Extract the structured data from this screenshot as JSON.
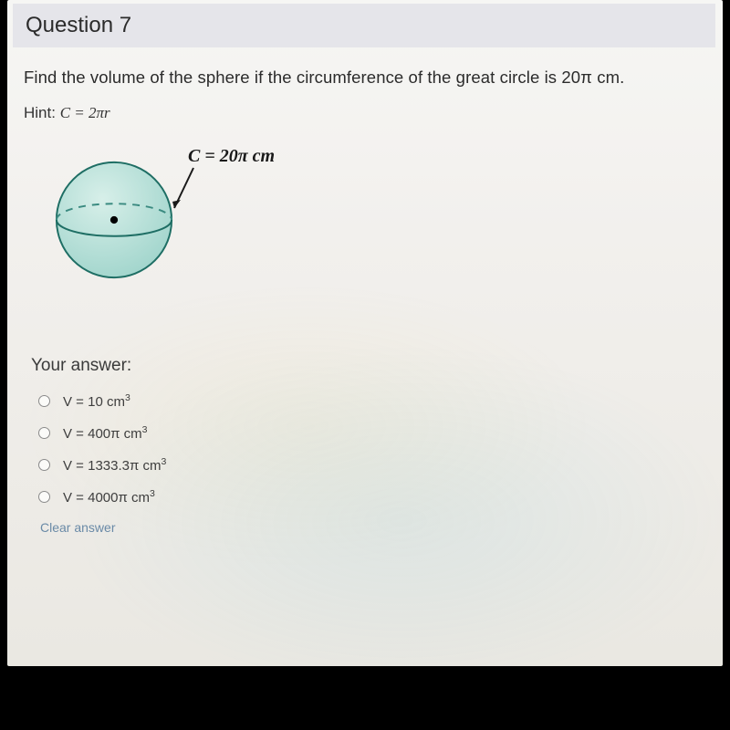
{
  "header": {
    "title": "Question 7"
  },
  "prompt": "Find the volume of the sphere if the circumference of the great circle is 20π cm.",
  "hint_label": "Hint:",
  "hint_formula": "C = 2πr",
  "figure": {
    "circ_label_prefix": "C = 20",
    "circ_label_pi": "π",
    "circ_label_unit": " cm",
    "sphere": {
      "fill": "#b7e0d9",
      "stroke": "#1e6e64",
      "stroke_width": 2,
      "equator_dash_color": "#3a8a80",
      "center_dot_color": "#000000"
    },
    "leader_color": "#1a1a1a"
  },
  "answer": {
    "section_label": "Your answer:",
    "options": [
      {
        "text_html": "V = 10 cm<sup>3</sup>"
      },
      {
        "text_html": "V = 400π cm<sup>3</sup>"
      },
      {
        "text_html": "V = 1333.3π cm<sup>3</sup>"
      },
      {
        "text_html": "V = 4000π cm<sup>3</sup>"
      }
    ],
    "clear_label": "Clear answer"
  },
  "colors": {
    "header_bg": "#e5e5ea",
    "page_bg_top": "#f6f6f4",
    "page_bg_bottom": "#eae8e2",
    "text": "#2b2b2b",
    "clear_link": "#6a8aa7"
  }
}
